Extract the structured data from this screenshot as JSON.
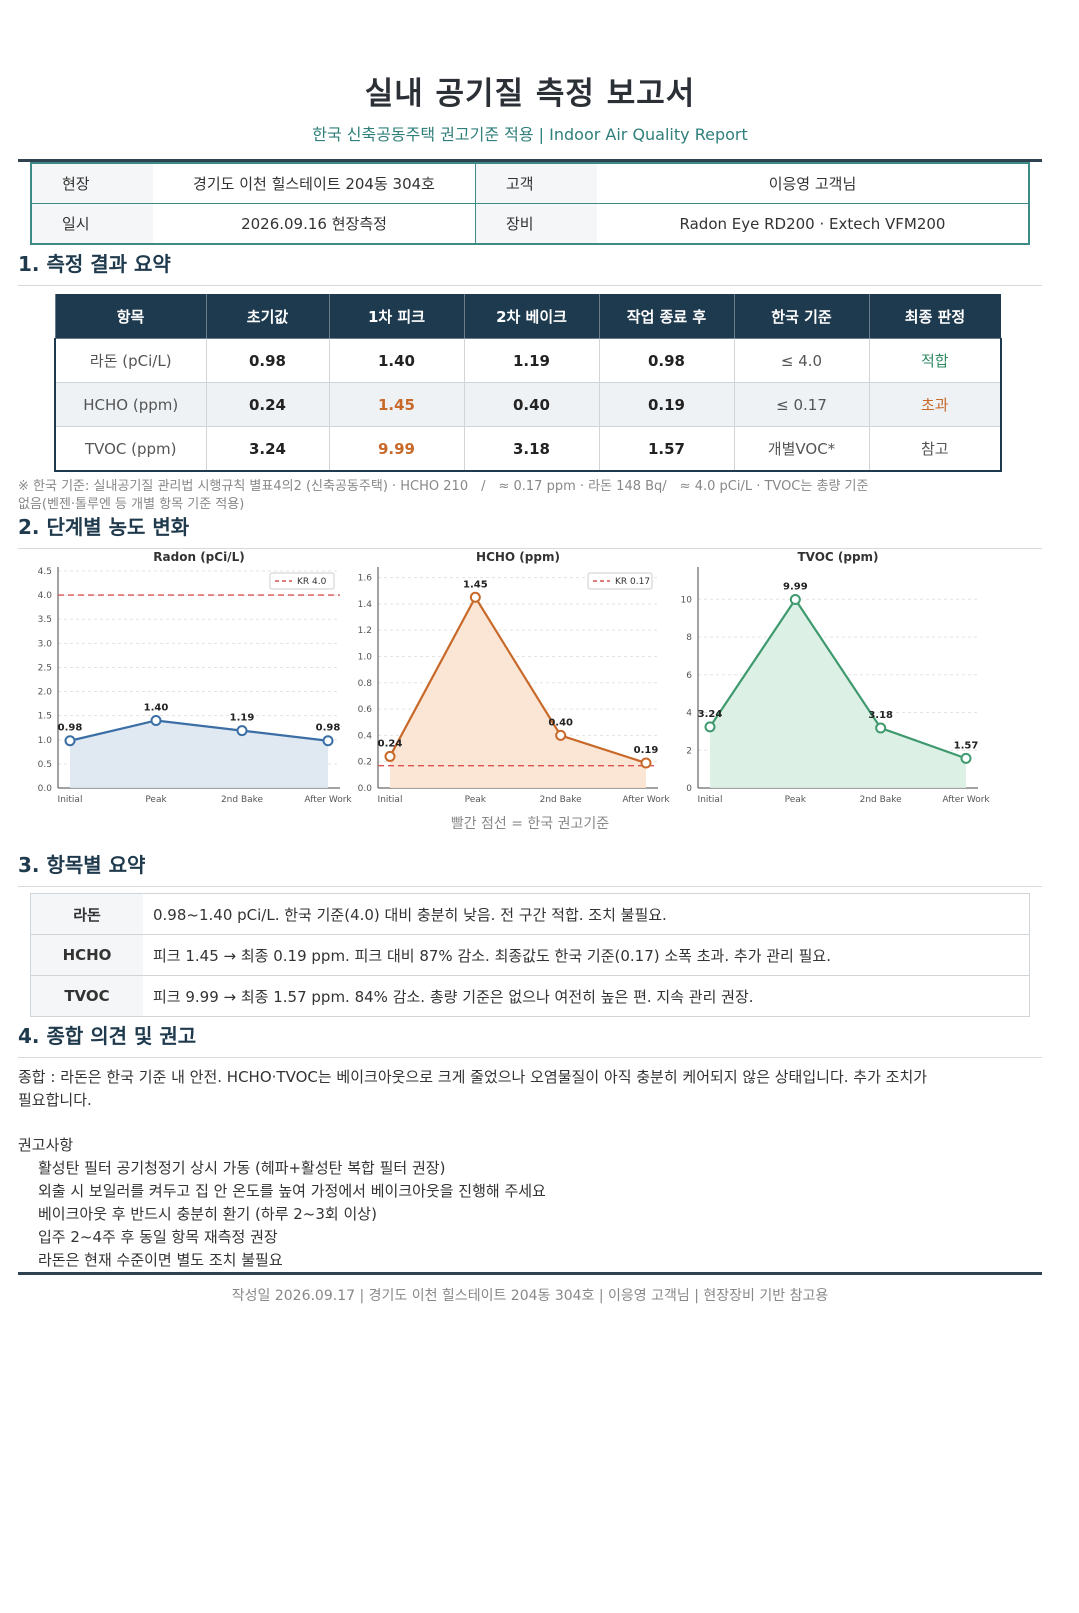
{
  "header": {
    "title": "실내 공기질 측정 보고서",
    "subtitle": "한국 신축공동주택 권고기준 적용 | Indoor Air Quality Report"
  },
  "info": {
    "site_label": "현장",
    "site_value": "경기도 이천 힐스테이트 204동 304호",
    "client_label": "고객",
    "client_value": "이응영 고객님",
    "date_label": "일시",
    "date_value": "2026.09.16 현장측정",
    "equip_label": "장비",
    "equip_value": "Radon Eye RD200 · Extech VFM200"
  },
  "section1": {
    "heading": "1. 측정 결과 요약",
    "columns": [
      "항목",
      "초기값",
      "1차 피크",
      "2차 베이크",
      "작업 종료 후",
      "한국 기준",
      "최종 판정"
    ],
    "rows": [
      {
        "item": "라돈 (pCi/L)",
        "initial": "0.98",
        "peak": "1.40",
        "bake": "1.19",
        "after": "0.98",
        "standard": "≤ 4.0",
        "verdict": "적합"
      },
      {
        "item": "HCHO (ppm)",
        "initial": "0.24",
        "peak": "1.45",
        "bake": "0.40",
        "after": "0.19",
        "standard": "≤ 0.17",
        "verdict": "초과"
      },
      {
        "item": "TVOC (ppm)",
        "initial": "3.24",
        "peak": "9.99",
        "bake": "3.18",
        "after": "1.57",
        "standard": "개별VOC*",
        "verdict": "참고"
      }
    ],
    "note_line1": "※ 한국 기준: 실내공기질 관리법 시행규칙 별표4의2 (신축공동주택) · HCHO 210　/　≈ 0.17 ppm · 라돈 148 Bq/　≈ 4.0 pCi/L · TVOC는 총량 기준",
    "note_line2": "없음(벤젠·톨루엔 등 개별 항목 기준 적용)"
  },
  "section2": {
    "heading": "2. 단계별 농도 변화",
    "caption": "빨간 점선 = 한국 권고기준"
  },
  "chart_data": [
    {
      "type": "line",
      "title": "Radon (pCi/L)",
      "categories": [
        "Initial",
        "Peak",
        "2nd Bake",
        "After Work"
      ],
      "values": [
        0.98,
        1.4,
        1.19,
        0.98
      ],
      "value_labels": [
        "0.98",
        "1.40",
        "1.19",
        "0.98"
      ],
      "ylim": [
        0,
        4.5
      ],
      "yticks": [
        "0.0",
        "0.5",
        "1.0",
        "1.5",
        "2.0",
        "2.5",
        "3.0",
        "3.5",
        "4.0",
        "4.5"
      ],
      "ytick_values": [
        0,
        0.5,
        1.0,
        1.5,
        2.0,
        2.5,
        3.0,
        3.5,
        4.0,
        4.5
      ],
      "threshold": 4.0,
      "legend": "KR 4.0",
      "legend_position": "top-right",
      "color": "#3a6ea5",
      "fill": "#dde7f1",
      "grid": true
    },
    {
      "type": "line",
      "title": "HCHO (ppm)",
      "categories": [
        "Initial",
        "Peak",
        "2nd Bake",
        "After Work"
      ],
      "values": [
        0.24,
        1.45,
        0.4,
        0.19
      ],
      "value_labels": [
        "0.24",
        "1.45",
        "0.40",
        "0.19"
      ],
      "ylim": [
        0,
        1.65
      ],
      "yticks": [
        "0.0",
        "0.2",
        "0.4",
        "0.6",
        "0.8",
        "1.0",
        "1.2",
        "1.4",
        "1.6"
      ],
      "ytick_values": [
        0,
        0.2,
        0.4,
        0.6,
        0.8,
        1.0,
        1.2,
        1.4,
        1.6
      ],
      "threshold": 0.17,
      "legend": "KR 0.17",
      "legend_position": "top-right",
      "color": "#c8692a",
      "fill": "#fbe3d2",
      "grid": true
    },
    {
      "type": "line",
      "title": "TVOC (ppm)",
      "categories": [
        "Initial",
        "Peak",
        "2nd Bake",
        "After Work"
      ],
      "values": [
        3.24,
        9.99,
        3.18,
        1.57
      ],
      "value_labels": [
        "3.24",
        "9.99",
        "3.18",
        "1.57"
      ],
      "ylim": [
        0,
        11.5
      ],
      "yticks": [
        "0",
        "2",
        "4",
        "6",
        "8",
        "10"
      ],
      "ytick_values": [
        0,
        2,
        4,
        6,
        8,
        10
      ],
      "color": "#3e9a6e",
      "fill": "#d9eee2",
      "grid": true
    }
  ],
  "section3": {
    "heading": "3. 항목별 요약",
    "rows": [
      {
        "key": "라돈",
        "text": "0.98~1.40 pCi/L. 한국 기준(4.0) 대비 충분히 낮음. 전 구간 적합. 조치 불필요."
      },
      {
        "key": "HCHO",
        "text": "피크 1.45 → 최종 0.19 ppm. 피크 대비 87% 감소. 최종값도 한국 기준(0.17) 소폭 초과. 추가 관리 필요."
      },
      {
        "key": "TVOC",
        "text": "피크 9.99 → 최종 1.57 ppm. 84% 감소. 총량 기준은 없으나 여전히 높은 편. 지속 관리 권장."
      }
    ]
  },
  "section4": {
    "heading": "4. 종합 의견 및 권고",
    "opinion_line1": "종합 : 라돈은 한국 기준 내 안전. HCHO·TVOC는 베이크아웃으로 크게 줄었으나 오염물질이 아직 충분히 케어되지 않은 상태입니다. 추가 조치가",
    "opinion_line2": "필요합니다.",
    "recs_title": "권고사항",
    "recs": [
      "활성탄 필터 공기청정기 상시 가동 (헤파+활성탄 복합 필터 권장)",
      "외출 시 보일러를 켜두고 집 안 온도를 높여 가정에서 베이크아웃을 진행해 주세요",
      "베이크아웃 후 반드시 충분히 환기 (하루 2~3회 이상)",
      "입주 2~4주 후 동일 항목 재측정 권장",
      "라돈은 현재 수준이면 별도 조치 불필요"
    ]
  },
  "footer": {
    "text": "작성일 2026.09.17 | 경기도 이천 힐스테이트 204동 304호 | 이응영 고객님 | 현장장비 기반 참고용"
  }
}
